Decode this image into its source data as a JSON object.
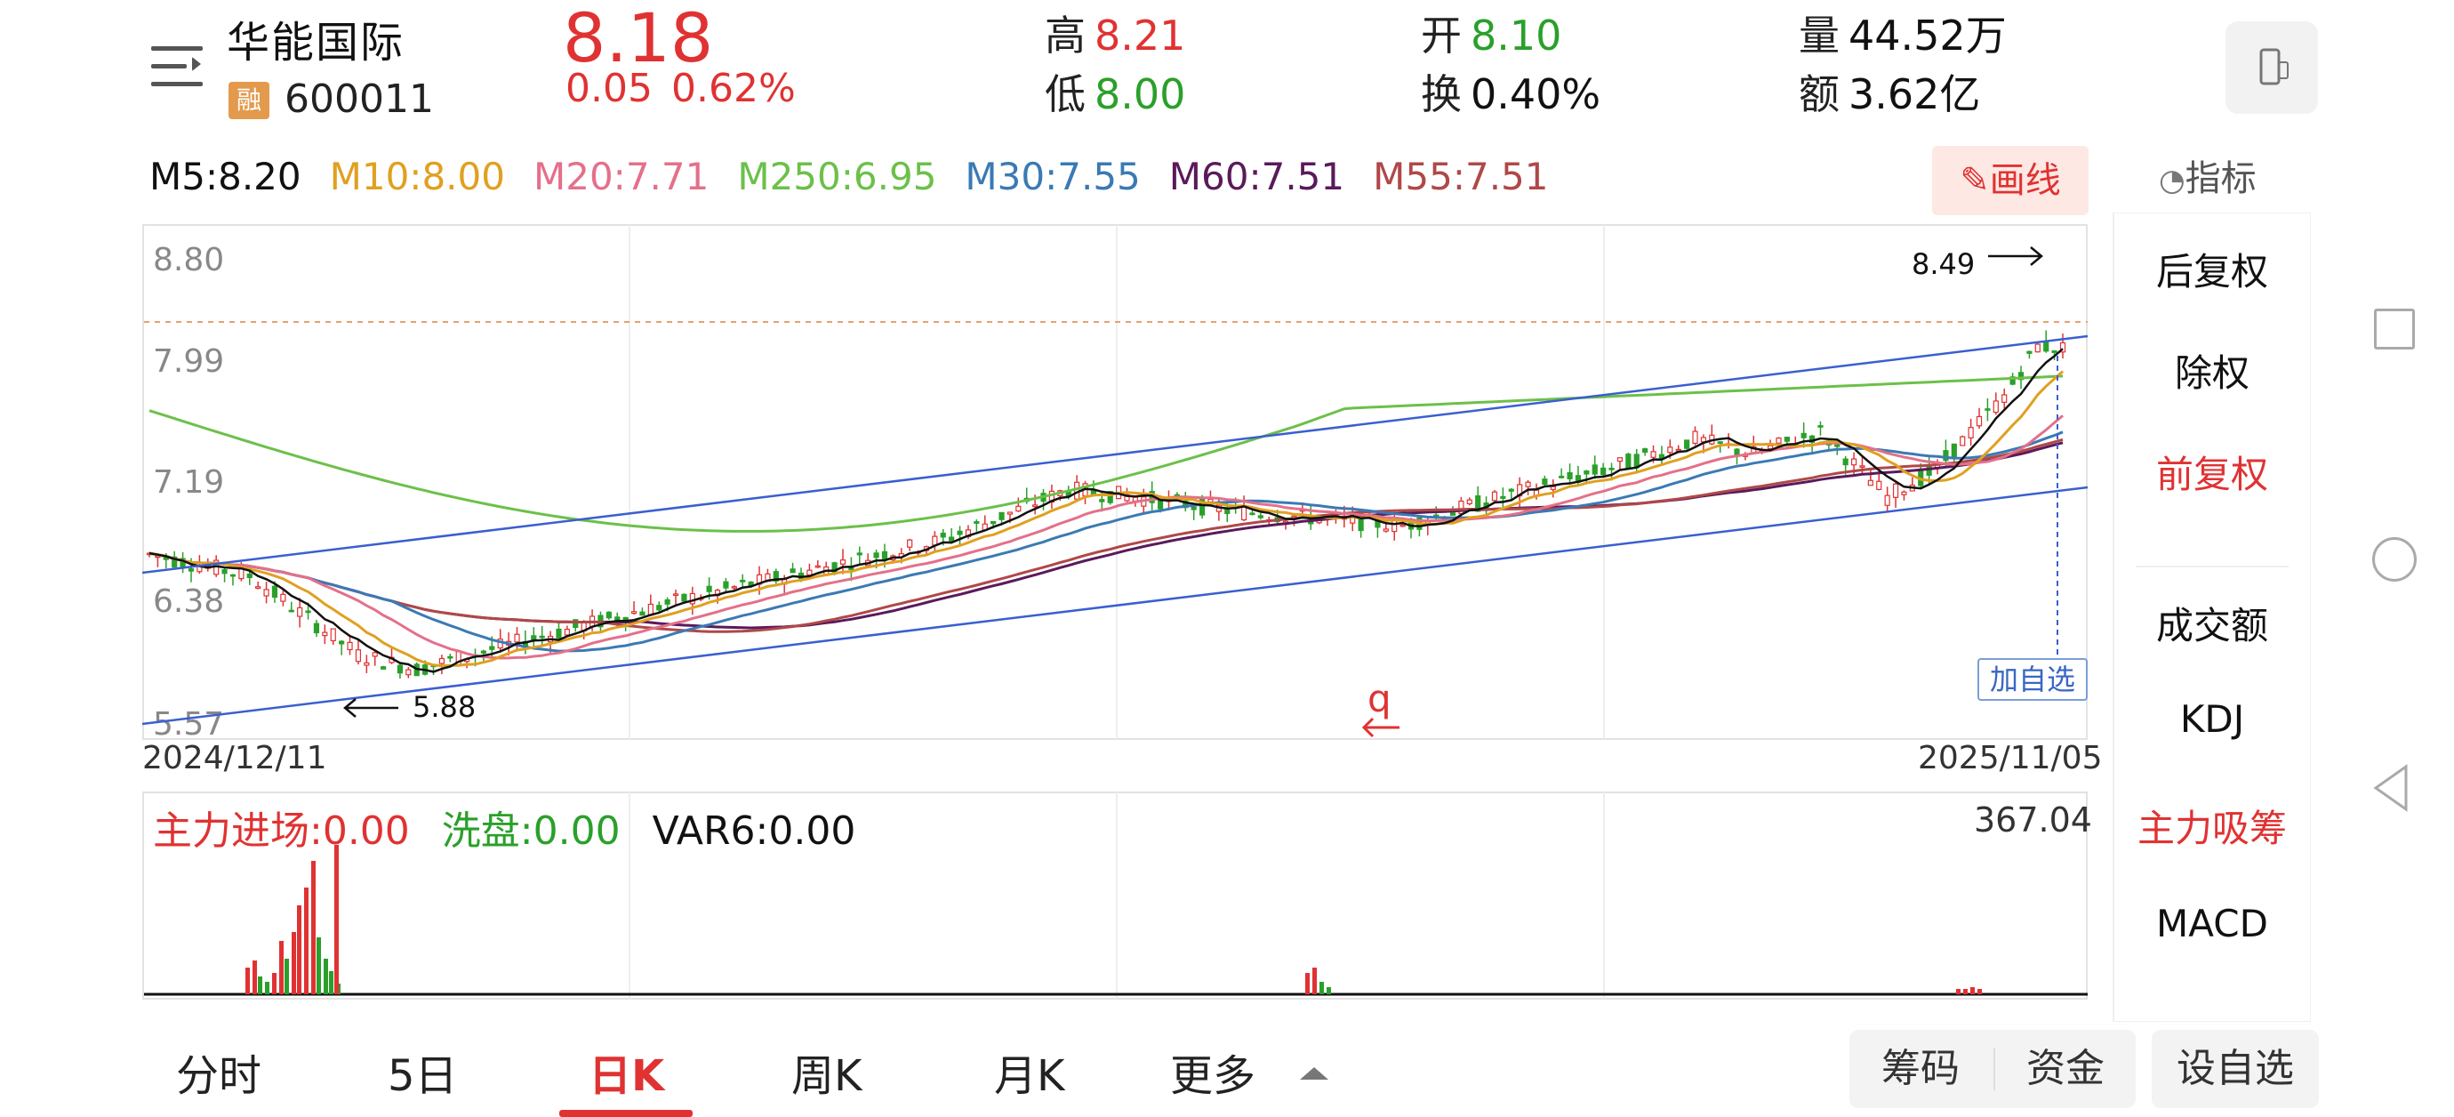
{
  "stock": {
    "name": "华能国际",
    "margin_badge": "融",
    "code": "600011",
    "price": "8.18",
    "change": "0.05",
    "change_pct": "0.62%",
    "high_label": "高",
    "high": "8.21",
    "low_label": "低",
    "low": "8.00",
    "open_label": "开",
    "open": "8.10",
    "turnover_label": "换",
    "turnover": "0.40%",
    "volume_label": "量",
    "volume": "44.52万",
    "amount_label": "额",
    "amount": "3.62亿"
  },
  "ma": [
    {
      "label": "M5:8.20",
      "color": "#111111"
    },
    {
      "label": "M10:8.00",
      "color": "#e0a020"
    },
    {
      "label": "M20:7.71",
      "color": "#e4708a"
    },
    {
      "label": "M250:6.95",
      "color": "#6cc04a"
    },
    {
      "label": "M30:7.55",
      "color": "#3a7ab4"
    },
    {
      "label": "M60:7.51",
      "color": "#5a1a5a"
    },
    {
      "label": "M55:7.51",
      "color": "#b04848"
    }
  ],
  "toolbar": {
    "draw": "画线",
    "indicator": "指标"
  },
  "right_panel": {
    "items": [
      "后复权",
      "除权",
      "前复权",
      "成交额",
      "KDJ",
      "主力吸筹",
      "MACD"
    ],
    "active_index": 2,
    "highlight_index": 5
  },
  "chart": {
    "y_ticks": [
      "8.80",
      "7.99",
      "7.19",
      "6.38",
      "5.57"
    ],
    "max_label": "8.49",
    "min_label": "5.88",
    "start_date": "2024/12/11",
    "end_date": "2025/11/05",
    "add_favorite": "加自选",
    "q_mark": "q"
  },
  "indicator": {
    "zljc": "主力进场:0.00",
    "xp": "洗盘:0.00",
    "var6": "VAR6:0.00",
    "max": "367.04"
  },
  "tabs": [
    "分时",
    "5日",
    "日K",
    "周K",
    "月K",
    "更多"
  ],
  "active_tab": 2,
  "bottom_buttons": {
    "chips": "筹码",
    "funds": "资金",
    "set_fav": "设自选"
  },
  "colors": {
    "up": "#e03232",
    "down": "#2aa02a",
    "channel": "#3a5fcf"
  }
}
